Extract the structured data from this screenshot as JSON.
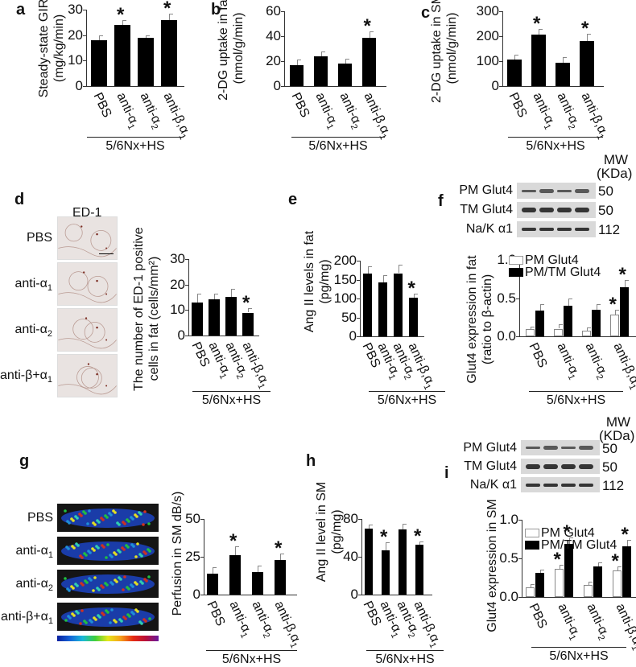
{
  "figure": {
    "group_label": "5/6Nx+HS",
    "categories": [
      "PBS",
      "anti-α1",
      "anti-α2",
      "anti-β,α1"
    ],
    "category_display": [
      {
        "main": "PBS",
        "sub": ""
      },
      {
        "main": "anti-α",
        "sub": "1"
      },
      {
        "main": "anti-α",
        "sub": "2"
      },
      {
        "main": "anti-β,α",
        "sub": "1"
      }
    ],
    "image_row_labels": [
      {
        "main": "PBS",
        "sub": ""
      },
      {
        "main": "anti-α",
        "sub": "1"
      },
      {
        "main": "anti-α",
        "sub": "2"
      },
      {
        "main": "anti-β+α",
        "sub": "1"
      }
    ]
  },
  "panels": {
    "a": {
      "letter": "a",
      "ylabel_1": "Steady-state GIR",
      "ylabel_2": "(mg/kg/min)",
      "ticks": [
        "0",
        "10",
        "20",
        "30"
      ]
    },
    "b": {
      "letter": "b",
      "ylabel_1": "2-DG uptake in fat",
      "ylabel_2": "(nmol/g/min)",
      "ticks": [
        "0",
        "20",
        "40",
        "60"
      ]
    },
    "c": {
      "letter": "c",
      "ylabel_1": "2-DG uptake in SM",
      "ylabel_2": "(nmol/g/min)",
      "ticks": [
        "0",
        "100",
        "200",
        "300"
      ]
    },
    "d": {
      "letter": "d",
      "stain_label": "ED-1",
      "ylabel_1": "The number of ED-1 positive",
      "ylabel_2": "cells in fat (cells/mm²)",
      "ticks": [
        "0",
        "10",
        "20",
        "30"
      ]
    },
    "e": {
      "letter": "e",
      "ylabel_1": "Ang II levels in fat",
      "ylabel_2": "(pg/mg)",
      "ticks": [
        "0",
        "50",
        "100",
        "150",
        "200"
      ]
    },
    "f": {
      "letter": "f",
      "mw_label_1": "MW",
      "mw_label_2": "(KDa)",
      "blots": [
        {
          "label": "PM Glut4",
          "mw": "50"
        },
        {
          "label": "TM Glut4",
          "mw": "50"
        },
        {
          "label": "Na/K α1",
          "mw": "112"
        }
      ],
      "legend": [
        "PM Glut4",
        "PM/TM Glut4"
      ],
      "ylabel_1": "Glut4 expression in fat",
      "ylabel_2": "(ratio to β-actin)",
      "ticks": [
        "0.0",
        "0.5",
        "1.0"
      ]
    },
    "g": {
      "letter": "g",
      "ylabel_1": "Perfusion in SM  dB/s)",
      "ticks": [
        "0",
        "25",
        "50"
      ]
    },
    "h": {
      "letter": "h",
      "ylabel_1": "Ang II level in SM",
      "ylabel_2": "(pg/mg)",
      "ticks": [
        "0",
        "40",
        "80"
      ]
    },
    "i": {
      "letter": "i",
      "mw_label_1": "MW",
      "mw_label_2": "(KDa)",
      "blots": [
        {
          "label": "PM Glut4",
          "mw": "50"
        },
        {
          "label": "TM Glut4",
          "mw": "50"
        },
        {
          "label": "Na/K α1",
          "mw": "112"
        }
      ],
      "legend": [
        "PM Glut4",
        "PM/TM Glut4"
      ],
      "ylabel_1": "Glut4 expression in SM",
      "ticks": [
        "0.0",
        "0.5",
        "1.0"
      ]
    }
  },
  "chart_data": [
    {
      "panel": "a",
      "type": "bar",
      "title": "",
      "xlabel": "5/6Nx+HS",
      "ylabel": "Steady-state GIR (mg/kg/min)",
      "ylim": [
        0,
        30
      ],
      "categories": [
        "PBS",
        "anti-α1",
        "anti-α2",
        "anti-β,α1"
      ],
      "values": [
        18,
        24,
        19,
        26
      ],
      "errors": [
        2,
        2,
        1,
        2.5
      ],
      "significant": [
        false,
        true,
        false,
        true
      ]
    },
    {
      "panel": "b",
      "type": "bar",
      "title": "",
      "xlabel": "5/6Nx+HS",
      "ylabel": "2-DG uptake in fat (nmol/g/min)",
      "ylim": [
        0,
        60
      ],
      "categories": [
        "PBS",
        "anti-α1",
        "anti-α2",
        "anti-β,α1"
      ],
      "values": [
        17,
        24,
        18,
        39
      ],
      "errors": [
        4,
        4,
        4,
        5
      ],
      "significant": [
        false,
        false,
        false,
        true
      ]
    },
    {
      "panel": "c",
      "type": "bar",
      "title": "",
      "xlabel": "5/6Nx+HS",
      "ylabel": "2-DG uptake in SM (nmol/g/min)",
      "ylim": [
        0,
        300
      ],
      "categories": [
        "PBS",
        "anti-α1",
        "anti-α2",
        "anti-β,α1"
      ],
      "values": [
        105,
        205,
        93,
        180
      ],
      "errors": [
        20,
        25,
        22,
        30
      ],
      "significant": [
        false,
        true,
        false,
        true
      ]
    },
    {
      "panel": "d",
      "type": "bar",
      "title": "",
      "xlabel": "5/6Nx+HS",
      "ylabel": "The number of ED-1 positive cells in fat (cells/mm²)",
      "ylim": [
        0,
        30
      ],
      "categories": [
        "PBS",
        "anti-α1",
        "anti-α2",
        "anti-β,α1"
      ],
      "values": [
        13,
        14.3,
        15.2,
        9
      ],
      "errors": [
        3.3,
        2.2,
        3,
        1.7
      ],
      "significant": [
        false,
        false,
        false,
        true
      ]
    },
    {
      "panel": "e",
      "type": "bar",
      "title": "",
      "xlabel": "5/6Nx+HS",
      "ylabel": "Ang II levels in fat (pg/mg)",
      "ylim": [
        0,
        200
      ],
      "categories": [
        "PBS",
        "anti-α1",
        "anti-α2",
        "anti-β,α1"
      ],
      "values": [
        165,
        142,
        167,
        102
      ],
      "errors": [
        20,
        20,
        23,
        10
      ],
      "significant": [
        false,
        false,
        false,
        true
      ]
    },
    {
      "panel": "f",
      "type": "bar",
      "title": "",
      "xlabel": "5/6Nx+HS",
      "ylabel": "Glut4 expression in fat (ratio to β-actin)",
      "ylim": [
        0,
        1.0
      ],
      "categories": [
        "PBS",
        "anti-α1",
        "anti-α2",
        "anti-β,α1"
      ],
      "series": [
        {
          "name": "PM Glut4",
          "values": [
            0.09,
            0.1,
            0.07,
            0.28
          ],
          "errors": [
            0.04,
            0.06,
            0.05,
            0.07
          ],
          "significant": [
            false,
            false,
            false,
            true
          ]
        },
        {
          "name": "PM/TM Glut4",
          "values": [
            0.34,
            0.4,
            0.35,
            0.64
          ],
          "errors": [
            0.08,
            0.09,
            0.07,
            0.1
          ],
          "significant": [
            false,
            false,
            false,
            true
          ]
        }
      ],
      "legend_position": "top"
    },
    {
      "panel": "g",
      "type": "bar",
      "title": "",
      "xlabel": "5/6Nx+HS",
      "ylabel": "Perfusion in SM dB/s)",
      "ylim": [
        0,
        50
      ],
      "categories": [
        "PBS",
        "anti-α1",
        "anti-α2",
        "anti-β,α1"
      ],
      "values": [
        14,
        26,
        15,
        23
      ],
      "errors": [
        4,
        6,
        4,
        4
      ],
      "significant": [
        false,
        true,
        false,
        true
      ]
    },
    {
      "panel": "h",
      "type": "bar",
      "title": "",
      "xlabel": "5/6Nx+HS",
      "ylabel": "Ang II level in SM (pg/mg)",
      "ylim": [
        0,
        80
      ],
      "categories": [
        "PBS",
        "anti-α1",
        "anti-α2",
        "anti-β,α1"
      ],
      "values": [
        70,
        47,
        69,
        53
      ],
      "errors": [
        4,
        8,
        6,
        3
      ],
      "significant": [
        false,
        true,
        false,
        true
      ]
    },
    {
      "panel": "i",
      "type": "bar",
      "title": "",
      "xlabel": "5/6Nx+HS",
      "ylabel": "Glut4 expression in SM",
      "ylim": [
        0,
        1.0
      ],
      "categories": [
        "PBS",
        "anti-α1",
        "anti-α2",
        "anti-β,α1"
      ],
      "series": [
        {
          "name": "PM Glut4",
          "values": [
            0.12,
            0.36,
            0.16,
            0.34
          ],
          "errors": [
            0.05,
            0.06,
            0.04,
            0.06
          ],
          "significant": [
            false,
            true,
            false,
            true
          ]
        },
        {
          "name": "PM/TM Glut4",
          "values": [
            0.31,
            0.69,
            0.4,
            0.66
          ],
          "errors": [
            0.04,
            0.08,
            0.05,
            0.08
          ],
          "significant": [
            false,
            true,
            false,
            true
          ]
        }
      ],
      "legend_position": "top"
    }
  ]
}
